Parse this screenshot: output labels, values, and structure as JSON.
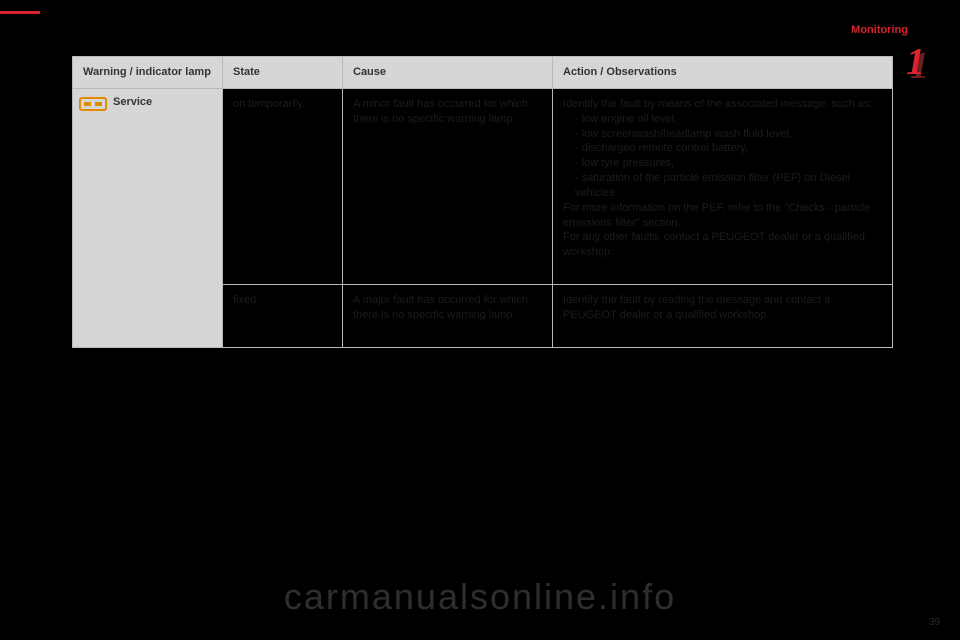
{
  "section": "Monitoring",
  "chapter_number": "1",
  "page_number": "39",
  "watermark": "carmanualsonline.info",
  "accent_color": "#d9232e",
  "table": {
    "headers": [
      "Warning / indicator lamp",
      "State",
      "Cause",
      "Action / Observations"
    ],
    "lamp_label": "Service",
    "rows": [
      {
        "state": "on temporarily.",
        "cause": "A minor fault has occurred for which there is no specific warning lamp.",
        "action_intro": "Identify the fault by means of the associated message, such as:",
        "action_list": [
          "low engine oil level,",
          "low screenwash/headlamp wash fluid level,",
          "discharged remote control battery,",
          "low tyre pressures,",
          "saturation of the particle emission filter (PEF) on Diesel vehicles."
        ],
        "action_post1": "For more information on the PEF, refer to the \"Checks - particle emissions filter\" section.",
        "action_post2": "For any other faults, contact a PEUGEOT dealer or a qualified workshop."
      },
      {
        "state": "fixed.",
        "cause": "A major fault has occurred for which there is no specific warning lamp.",
        "action": "Identify the fault by reading the message and contact a PEUGEOT dealer or a qualified workshop."
      }
    ]
  }
}
